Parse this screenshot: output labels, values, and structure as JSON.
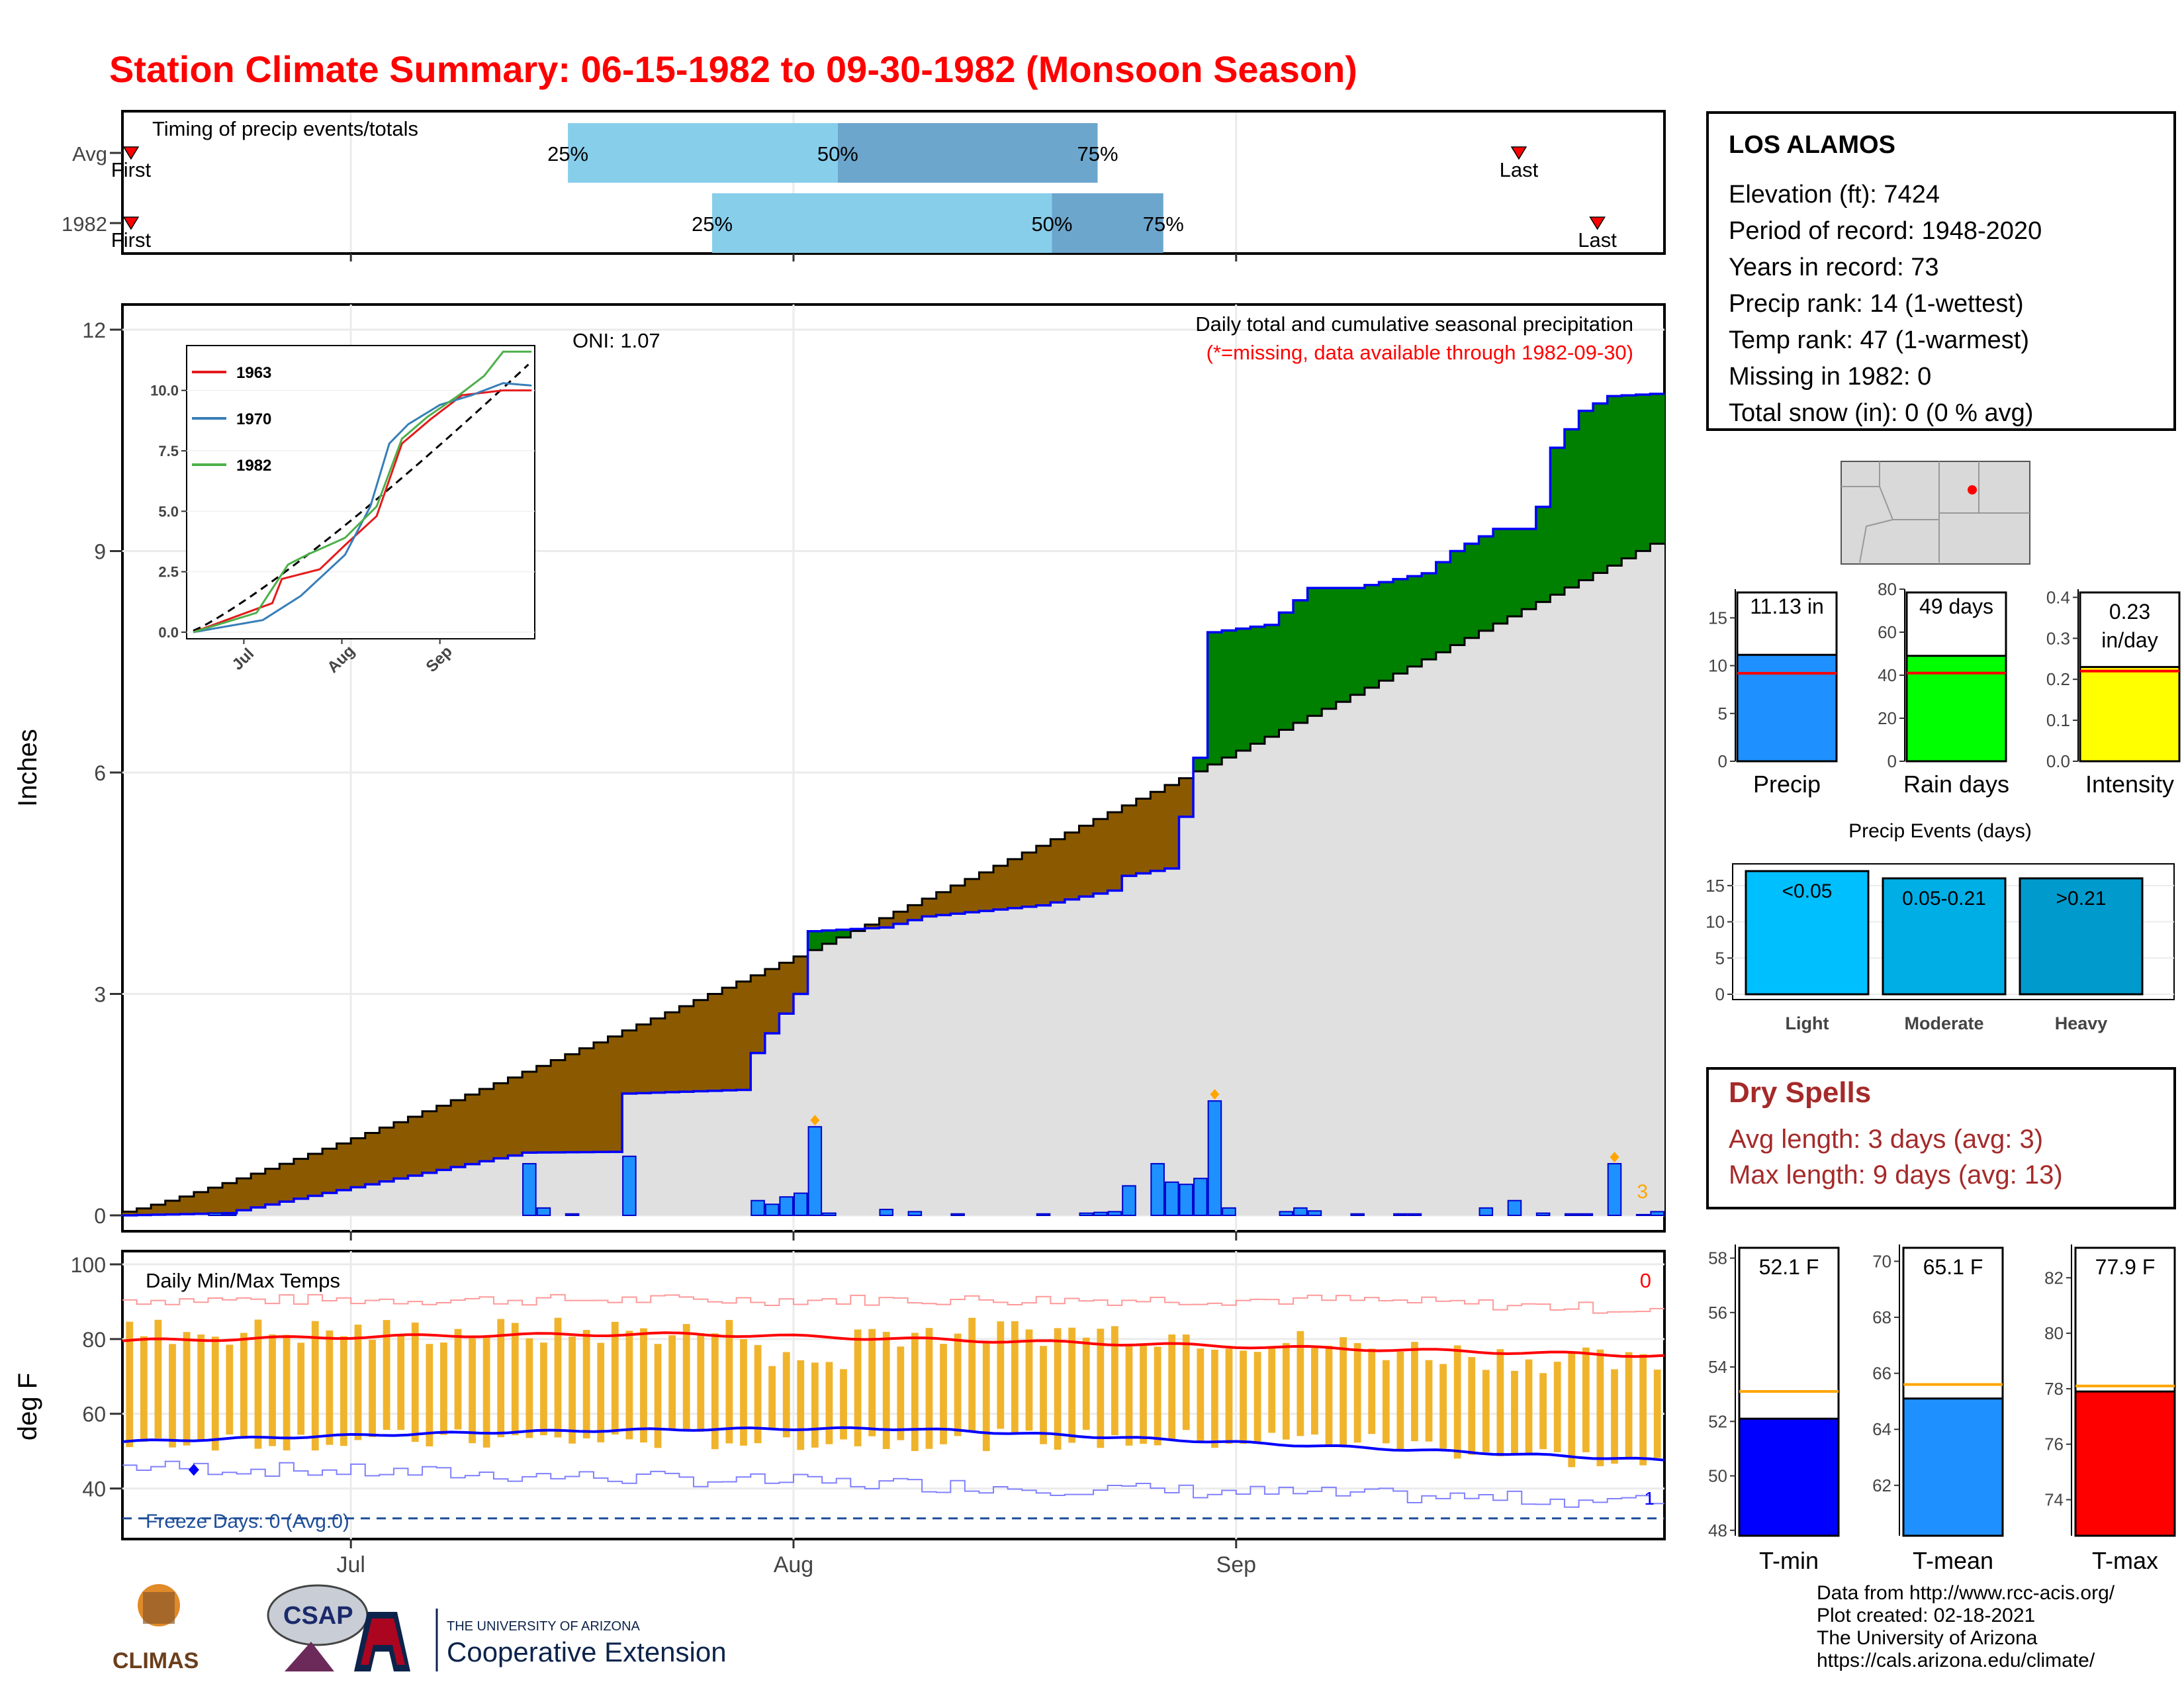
{
  "title": "Station Climate Summary: 06-15-1982 to 09-30-1982 (Monsoon Season)",
  "timing": {
    "title": "Timing of precip events/totals",
    "rows": [
      {
        "label": "Avg",
        "first_day": 0.6,
        "last_day": 97.8,
        "p25_day": 31.2,
        "p50_day": 50.1,
        "p75_day": 68.3,
        "last_text": "Last",
        "first_text": "First"
      },
      {
        "label": "1982",
        "first_day": 0.6,
        "last_day": 103.3,
        "p25_day": 41.3,
        "p50_day": 65.1,
        "p75_day": 72.9,
        "last_text": "Last",
        "first_text": "First"
      }
    ],
    "pct_labels": [
      "25%",
      "50%",
      "75%"
    ],
    "colors": {
      "light": "#87ceeb",
      "dark": "#6ca6cd",
      "marker": "#ff0000"
    }
  },
  "main": {
    "ylabel": "Inches",
    "yticks": [
      "0",
      "3",
      "6",
      "9",
      "12"
    ],
    "xticks": [
      "Jul",
      "Aug",
      "Sep"
    ],
    "legend_title": "Daily total and cumulative seasonal precipitation",
    "legend_sub": "(*=missing, data available through 1982-09-30)",
    "oni": "ONI: 1.07",
    "missing_count": "3",
    "colors": {
      "wet": "#008000",
      "dry": "#8b5a00",
      "normal": "#e0e0e0",
      "bars": "#1e90ff",
      "marker": "#ffa500"
    }
  },
  "inset": {
    "yticks": [
      "0.0",
      "2.5",
      "5.0",
      "7.5",
      "10.0"
    ],
    "xticks": [
      "Jul",
      "Aug",
      "Sep"
    ],
    "legend": [
      {
        "name": "1963",
        "color": "#e41a1c"
      },
      {
        "name": "1970",
        "color": "#377eb8"
      },
      {
        "name": "1982",
        "color": "#4daf4a"
      }
    ]
  },
  "temps": {
    "title": "Daily Min/Max Temps",
    "ylabel": "deg F",
    "yticks": [
      "40",
      "60",
      "80",
      "100"
    ],
    "xticks": [
      "Jul",
      "Aug",
      "Sep"
    ],
    "freeze_text": "Freeze Days: 0 (Avg:0)",
    "missing_count": "0",
    "freeze_marker": "1",
    "colors": {
      "bars": "#f0b42c",
      "max_avg": "#ff0000",
      "min_avg": "#0000ff",
      "max_rec": "#ff9999",
      "min_rec": "#8080ff",
      "freeze": "#1f4e9a"
    }
  },
  "station": {
    "name": "LOS ALAMOS",
    "lines": [
      "Elevation (ft): 7424",
      "Period of record: 1948-2020",
      "Years in record: 73",
      "Precip rank: 14 (1-wettest)",
      "Temp rank: 47 (1-warmest)",
      "Missing in 1982: 0",
      "Total snow (in): 0 (0 % avg)"
    ]
  },
  "summary_bars": [
    {
      "label": "Precip",
      "value_text": "11.13 in",
      "value": 11.13,
      "avg": 9.2,
      "max": 18,
      "yticks": [
        "0",
        "5",
        "10",
        "15"
      ],
      "tick_values": [
        0,
        5,
        10,
        15
      ],
      "color": "#1e90ff"
    },
    {
      "label": "Rain days",
      "value_text": "49 days",
      "value": 49,
      "avg": 41,
      "max": 80,
      "yticks": [
        "0",
        "20",
        "40",
        "60",
        "80"
      ],
      "tick_values": [
        0,
        20,
        40,
        60,
        80
      ],
      "color": "#00ff00"
    },
    {
      "label": "Intensity",
      "value_text": "0.23",
      "value_text2": "in/day",
      "value": 0.23,
      "avg": 0.22,
      "max": 0.42,
      "yticks": [
        "0.0",
        "0.1",
        "0.2",
        "0.3",
        "0.4"
      ],
      "tick_values": [
        0,
        0.1,
        0.2,
        0.3,
        0.4
      ],
      "color": "#ffff00"
    }
  ],
  "events": {
    "title": "Precip Events (days)",
    "yticks": [
      "0",
      "5",
      "10",
      "15"
    ],
    "bars": [
      {
        "label": "Light",
        "bin": "<0.05",
        "value": 17,
        "color": "#00bfff"
      },
      {
        "label": "Moderate",
        "bin": "0.05-0.21",
        "value": 16,
        "color": "#00aee6"
      },
      {
        "label": "Heavy",
        "bin": ">0.21",
        "value": 16,
        "color": "#009acd"
      }
    ]
  },
  "dry_spells": {
    "title": "Dry Spells",
    "lines": [
      "Avg length: 3 days (avg: 3)",
      "Max length: 9 days (avg: 13)"
    ]
  },
  "temp_bars": [
    {
      "label": "T-min",
      "value_text": "52.1 F",
      "value": 52.1,
      "avg": 53.1,
      "min": 47.8,
      "max": 58.5,
      "yticks": [
        "48",
        "50",
        "52",
        "54",
        "56",
        "58"
      ],
      "tick_values": [
        48,
        50,
        52,
        54,
        56,
        58
      ],
      "color": "#0000ff"
    },
    {
      "label": "T-mean",
      "value_text": "65.1 F",
      "value": 65.1,
      "avg": 65.6,
      "min": 60.2,
      "max": 70.6,
      "yticks": [
        "62",
        "64",
        "66",
        "68",
        "70"
      ],
      "tick_values": [
        62,
        64,
        66,
        68,
        70
      ],
      "color": "#1e90ff"
    },
    {
      "label": "T-max",
      "value_text": "77.9 F",
      "value": 77.9,
      "avg": 78.1,
      "min": 72.7,
      "max": 83.2,
      "yticks": [
        "74",
        "76",
        "78",
        "80",
        "82"
      ],
      "tick_values": [
        74,
        76,
        78,
        80,
        82
      ],
      "color": "#ff0000"
    }
  ],
  "logos": {
    "climas": "CLIMAS",
    "csap": "CSAP",
    "ua_top": "THE UNIVERSITY OF ARIZONA",
    "ua_bottom": "Cooperative Extension"
  },
  "credits": [
    "Data from http://www.rcc-acis.org/",
    "Plot created: 02-18-2021",
    "The University of Arizona",
    "https://cals.arizona.edu/climate/"
  ]
}
